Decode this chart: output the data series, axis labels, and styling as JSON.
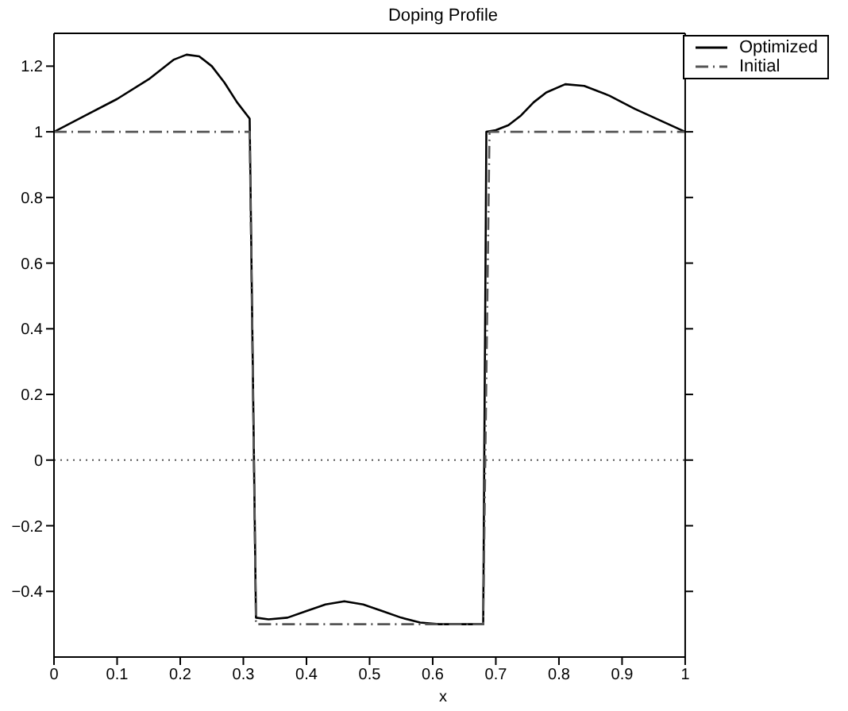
{
  "chart_data": {
    "type": "line",
    "title": "Doping Profile",
    "xlabel": "x",
    "xlim": [
      0,
      1
    ],
    "xticks": [
      0,
      0.1,
      0.2,
      0.3,
      0.4,
      0.5,
      0.6,
      0.7,
      0.8,
      0.9,
      1
    ],
    "ylim": [
      -0.6,
      1.3
    ],
    "yticks": [
      -0.4,
      -0.2,
      0,
      0.2,
      0.4,
      0.6,
      0.8,
      1,
      1.2
    ],
    "grid": false,
    "legend": "top right",
    "marker": "none",
    "ref_lines": [
      {
        "axis": "y",
        "value": 0,
        "color": "#555555",
        "line_style": "dotted"
      }
    ],
    "series": [
      {
        "name": "Optimized",
        "color": "#000000",
        "line_style": "solid",
        "x": [
          0,
          0.05,
          0.1,
          0.15,
          0.19,
          0.21,
          0.23,
          0.25,
          0.27,
          0.29,
          0.31,
          0.32,
          0.34,
          0.37,
          0.4,
          0.43,
          0.46,
          0.49,
          0.52,
          0.55,
          0.58,
          0.61,
          0.65,
          0.68,
          0.685,
          0.7,
          0.72,
          0.74,
          0.76,
          0.78,
          0.81,
          0.84,
          0.88,
          0.92,
          0.96,
          1
        ],
        "values": [
          1,
          1.05,
          1.1,
          1.16,
          1.22,
          1.235,
          1.23,
          1.2,
          1.15,
          1.09,
          1.04,
          -0.48,
          -0.485,
          -0.48,
          -0.46,
          -0.44,
          -0.43,
          -0.44,
          -0.46,
          -0.48,
          -0.495,
          -0.5,
          -0.5,
          -0.5,
          1.0,
          1.005,
          1.02,
          1.05,
          1.09,
          1.12,
          1.145,
          1.14,
          1.11,
          1.07,
          1.035,
          1
        ]
      },
      {
        "name": "Initial",
        "color": "#555555",
        "line_style": "dashdot",
        "x": [
          0,
          0.31,
          0.32,
          0.68,
          0.69,
          1
        ],
        "values": [
          1,
          1,
          -0.5,
          -0.5,
          1,
          1
        ]
      }
    ]
  }
}
